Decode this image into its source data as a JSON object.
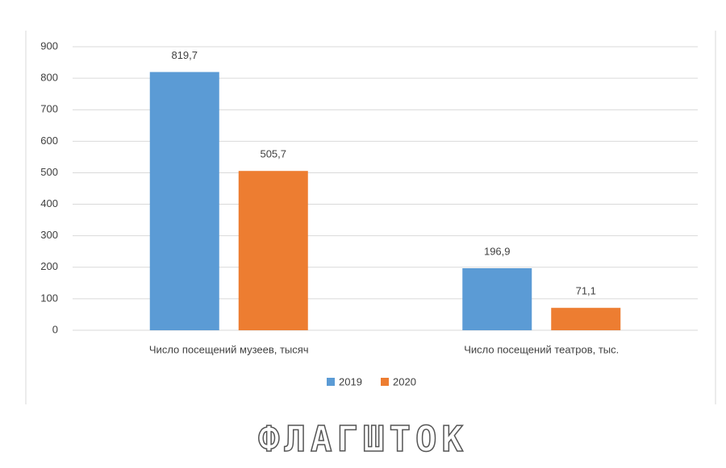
{
  "chart_data": {
    "type": "bar",
    "categories": [
      "Число посещений музеев, тысяч",
      "Число посещений театров, тыс."
    ],
    "series": [
      {
        "name": "2019",
        "color": "#5b9bd5",
        "values": [
          819.7,
          196.9
        ],
        "value_labels": [
          "819,7",
          "196,9"
        ]
      },
      {
        "name": "2020",
        "color": "#ed7d31",
        "values": [
          505.7,
          71.1
        ],
        "value_labels": [
          "505,7",
          "71,1"
        ]
      }
    ],
    "ylim": [
      0,
      900
    ],
    "yticks": [
      0,
      100,
      200,
      300,
      400,
      500,
      600,
      700,
      800,
      900
    ],
    "grid": true,
    "legend": "bottom"
  },
  "watermark": "ФЛАГШТОК"
}
